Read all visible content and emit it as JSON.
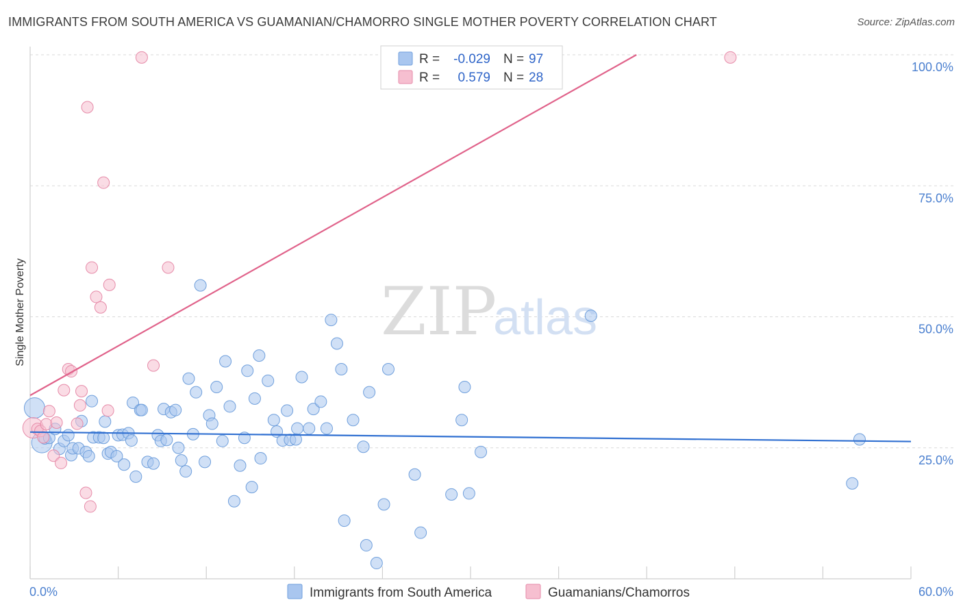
{
  "header": {
    "title": "IMMIGRANTS FROM SOUTH AMERICA VS GUAMANIAN/CHAMORRO SINGLE MOTHER POVERTY CORRELATION CHART",
    "source": "Source: ZipAtlas.com"
  },
  "watermark": {
    "zip": "ZIP",
    "atlas": "atlas"
  },
  "colors": {
    "blue_fill": "#a9c6ef",
    "blue_stroke": "#6f9fdc",
    "blue_line": "#2f6fd1",
    "pink_fill": "#f6bfd0",
    "pink_stroke": "#e68aa8",
    "pink_line": "#e0628a",
    "grid": "#d9d9d9",
    "tick_text": "#4a7fcf"
  },
  "legend": {
    "r_label": "R =",
    "n_label": "N =",
    "rows": [
      {
        "series": "blue",
        "r": "-0.029",
        "n": "97"
      },
      {
        "series": "pink",
        "r": "0.579",
        "n": "28"
      }
    ]
  },
  "chart_data": {
    "type": "scatter",
    "title": "IMMIGRANTS FROM SOUTH AMERICA VS GUAMANIAN/CHAMORRO SINGLE MOTHER POVERTY CORRELATION CHART",
    "xlabel": "",
    "ylabel": "Single Mother Poverty",
    "xlim": [
      0,
      60
    ],
    "ylim": [
      0,
      100
    ],
    "x_tick_labels": [
      "0.0%",
      "60.0%"
    ],
    "y_ticks": [
      {
        "value": 25,
        "label": "25.0%"
      },
      {
        "value": 50,
        "label": "50.0%"
      },
      {
        "value": 75,
        "label": "75.0%"
      },
      {
        "value": 100,
        "label": "100.0%"
      }
    ],
    "legend_position": "top-center",
    "series": [
      {
        "name": "Immigrants from South America",
        "color": "blue",
        "r": -0.029,
        "n": 97,
        "trend": {
          "x": [
            0,
            60
          ],
          "y": [
            28.0,
            26.2
          ]
        },
        "points": [
          {
            "x": 0.3,
            "y": 32.6,
            "big": true
          },
          {
            "x": 0.8,
            "y": 26.0,
            "big": true
          },
          {
            "x": 1.0,
            "y": 26.8
          },
          {
            "x": 1.3,
            "y": 26.9
          },
          {
            "x": 1.7,
            "y": 28.6
          },
          {
            "x": 2.0,
            "y": 24.8
          },
          {
            "x": 2.3,
            "y": 26.3
          },
          {
            "x": 2.6,
            "y": 27.4
          },
          {
            "x": 2.8,
            "y": 23.6
          },
          {
            "x": 2.9,
            "y": 24.9
          },
          {
            "x": 3.3,
            "y": 24.9
          },
          {
            "x": 3.5,
            "y": 30.1
          },
          {
            "x": 3.8,
            "y": 24.2
          },
          {
            "x": 4.0,
            "y": 23.4
          },
          {
            "x": 4.2,
            "y": 33.9
          },
          {
            "x": 4.3,
            "y": 27.0
          },
          {
            "x": 4.7,
            "y": 27.0
          },
          {
            "x": 5.0,
            "y": 26.9
          },
          {
            "x": 5.1,
            "y": 30.0
          },
          {
            "x": 5.3,
            "y": 23.9
          },
          {
            "x": 5.5,
            "y": 24.2
          },
          {
            "x": 5.9,
            "y": 23.4
          },
          {
            "x": 6.0,
            "y": 27.4
          },
          {
            "x": 6.3,
            "y": 27.5
          },
          {
            "x": 6.4,
            "y": 21.8
          },
          {
            "x": 6.7,
            "y": 27.8
          },
          {
            "x": 6.9,
            "y": 26.4
          },
          {
            "x": 7.0,
            "y": 33.6
          },
          {
            "x": 7.2,
            "y": 19.5
          },
          {
            "x": 7.5,
            "y": 32.2
          },
          {
            "x": 7.6,
            "y": 32.2
          },
          {
            "x": 8.0,
            "y": 22.3
          },
          {
            "x": 8.4,
            "y": 22.0
          },
          {
            "x": 8.7,
            "y": 27.4
          },
          {
            "x": 8.9,
            "y": 26.3
          },
          {
            "x": 9.1,
            "y": 32.4
          },
          {
            "x": 9.3,
            "y": 26.5
          },
          {
            "x": 9.6,
            "y": 31.8
          },
          {
            "x": 9.9,
            "y": 32.2
          },
          {
            "x": 10.1,
            "y": 25.0
          },
          {
            "x": 10.3,
            "y": 22.6
          },
          {
            "x": 10.6,
            "y": 20.5
          },
          {
            "x": 10.8,
            "y": 38.2
          },
          {
            "x": 11.1,
            "y": 27.6
          },
          {
            "x": 11.3,
            "y": 35.6
          },
          {
            "x": 11.6,
            "y": 56.0
          },
          {
            "x": 11.9,
            "y": 22.3
          },
          {
            "x": 12.2,
            "y": 31.2
          },
          {
            "x": 12.4,
            "y": 29.6
          },
          {
            "x": 12.7,
            "y": 36.6
          },
          {
            "x": 13.1,
            "y": 26.3
          },
          {
            "x": 13.3,
            "y": 41.5
          },
          {
            "x": 13.6,
            "y": 32.9
          },
          {
            "x": 13.9,
            "y": 14.8
          },
          {
            "x": 14.3,
            "y": 21.6
          },
          {
            "x": 14.6,
            "y": 26.9
          },
          {
            "x": 14.8,
            "y": 39.7
          },
          {
            "x": 15.1,
            "y": 17.5
          },
          {
            "x": 15.3,
            "y": 34.4
          },
          {
            "x": 15.6,
            "y": 42.6
          },
          {
            "x": 15.7,
            "y": 23.0
          },
          {
            "x": 16.2,
            "y": 37.8
          },
          {
            "x": 16.6,
            "y": 30.3
          },
          {
            "x": 16.8,
            "y": 28.1
          },
          {
            "x": 17.2,
            "y": 26.4
          },
          {
            "x": 17.5,
            "y": 32.1
          },
          {
            "x": 17.7,
            "y": 26.5
          },
          {
            "x": 18.1,
            "y": 26.6
          },
          {
            "x": 18.2,
            "y": 28.7
          },
          {
            "x": 18.5,
            "y": 38.5
          },
          {
            "x": 19.0,
            "y": 28.7
          },
          {
            "x": 19.3,
            "y": 32.4
          },
          {
            "x": 19.8,
            "y": 33.8
          },
          {
            "x": 20.2,
            "y": 28.7
          },
          {
            "x": 20.5,
            "y": 49.4
          },
          {
            "x": 20.9,
            "y": 44.9
          },
          {
            "x": 21.2,
            "y": 40.0
          },
          {
            "x": 21.4,
            "y": 11.1
          },
          {
            "x": 22.0,
            "y": 30.3
          },
          {
            "x": 22.7,
            "y": 25.2
          },
          {
            "x": 22.9,
            "y": 6.4
          },
          {
            "x": 23.1,
            "y": 35.6
          },
          {
            "x": 23.6,
            "y": 3.0
          },
          {
            "x": 24.1,
            "y": 14.2
          },
          {
            "x": 24.4,
            "y": 40.0
          },
          {
            "x": 26.2,
            "y": 19.9
          },
          {
            "x": 26.6,
            "y": 8.8
          },
          {
            "x": 28.7,
            "y": 16.1
          },
          {
            "x": 29.4,
            "y": 30.3
          },
          {
            "x": 29.6,
            "y": 36.6
          },
          {
            "x": 29.9,
            "y": 16.3
          },
          {
            "x": 30.7,
            "y": 24.2
          },
          {
            "x": 38.2,
            "y": 50.2
          },
          {
            "x": 56.0,
            "y": 18.2
          },
          {
            "x": 56.5,
            "y": 26.6
          }
        ]
      },
      {
        "name": "Guamanians/Chamorros",
        "color": "pink",
        "r": 0.579,
        "n": 28,
        "trend": {
          "x": [
            0,
            41.3
          ],
          "y": [
            35.0,
            100.0
          ]
        },
        "points": [
          {
            "x": 0.2,
            "y": 28.8,
            "big": true
          },
          {
            "x": 0.5,
            "y": 28.6
          },
          {
            "x": 0.7,
            "y": 28.2
          },
          {
            "x": 0.9,
            "y": 27.0
          },
          {
            "x": 1.1,
            "y": 29.5
          },
          {
            "x": 1.3,
            "y": 32.0
          },
          {
            "x": 1.6,
            "y": 23.5
          },
          {
            "x": 1.8,
            "y": 29.8
          },
          {
            "x": 2.1,
            "y": 22.1
          },
          {
            "x": 2.3,
            "y": 36.0
          },
          {
            "x": 2.6,
            "y": 40.0
          },
          {
            "x": 2.8,
            "y": 39.6
          },
          {
            "x": 3.2,
            "y": 29.6
          },
          {
            "x": 3.4,
            "y": 33.1
          },
          {
            "x": 3.5,
            "y": 35.8
          },
          {
            "x": 3.8,
            "y": 16.4
          },
          {
            "x": 3.9,
            "y": 90.0
          },
          {
            "x": 4.1,
            "y": 13.8
          },
          {
            "x": 4.2,
            "y": 59.4
          },
          {
            "x": 4.5,
            "y": 53.8
          },
          {
            "x": 4.8,
            "y": 51.8
          },
          {
            "x": 5.0,
            "y": 75.6
          },
          {
            "x": 5.3,
            "y": 32.1
          },
          {
            "x": 5.4,
            "y": 56.1
          },
          {
            "x": 7.6,
            "y": 99.5
          },
          {
            "x": 8.4,
            "y": 40.7
          },
          {
            "x": 9.4,
            "y": 59.4
          },
          {
            "x": 47.7,
            "y": 99.5
          }
        ]
      }
    ]
  },
  "bottom_legend": [
    {
      "series": "blue",
      "label": "Immigrants from South America"
    },
    {
      "series": "pink",
      "label": "Guamanians/Chamorros"
    }
  ]
}
